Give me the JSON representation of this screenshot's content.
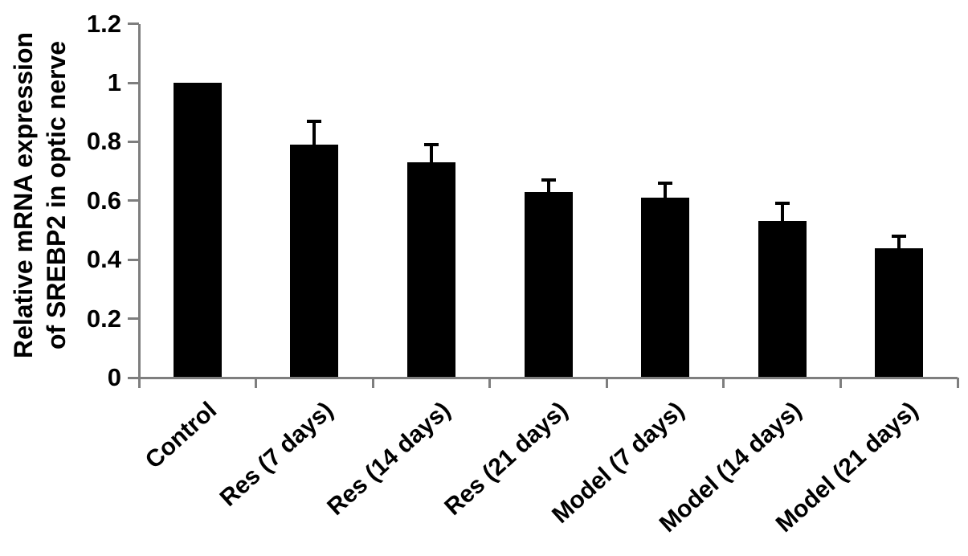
{
  "chart_data": {
    "type": "bar",
    "title": "",
    "ylabel_lines": [
      "Relative mRNA expression",
      "of SREBP2 in optic nerve"
    ],
    "xlabel": "",
    "categories": [
      "Control",
      "Res (7 days)",
      "Res (14 days)",
      "Res (21 days)",
      "Model (7 days)",
      "Model (14 days)",
      "Model (21 days)"
    ],
    "values": [
      1.0,
      0.79,
      0.73,
      0.63,
      0.61,
      0.53,
      0.44
    ],
    "errors_plus": [
      0,
      0.08,
      0.06,
      0.04,
      0.05,
      0.06,
      0.04
    ],
    "ylim": [
      0,
      1.2
    ],
    "ytick_step": 0.2,
    "ytick_labels": [
      "0",
      "0.2",
      "0.4",
      "0.6",
      "0.8",
      "1",
      "1.2"
    ],
    "bar_color": "#000000",
    "axis_color": "#7e7e7e",
    "text_color": "#000000",
    "grid": false,
    "legend": null
  }
}
